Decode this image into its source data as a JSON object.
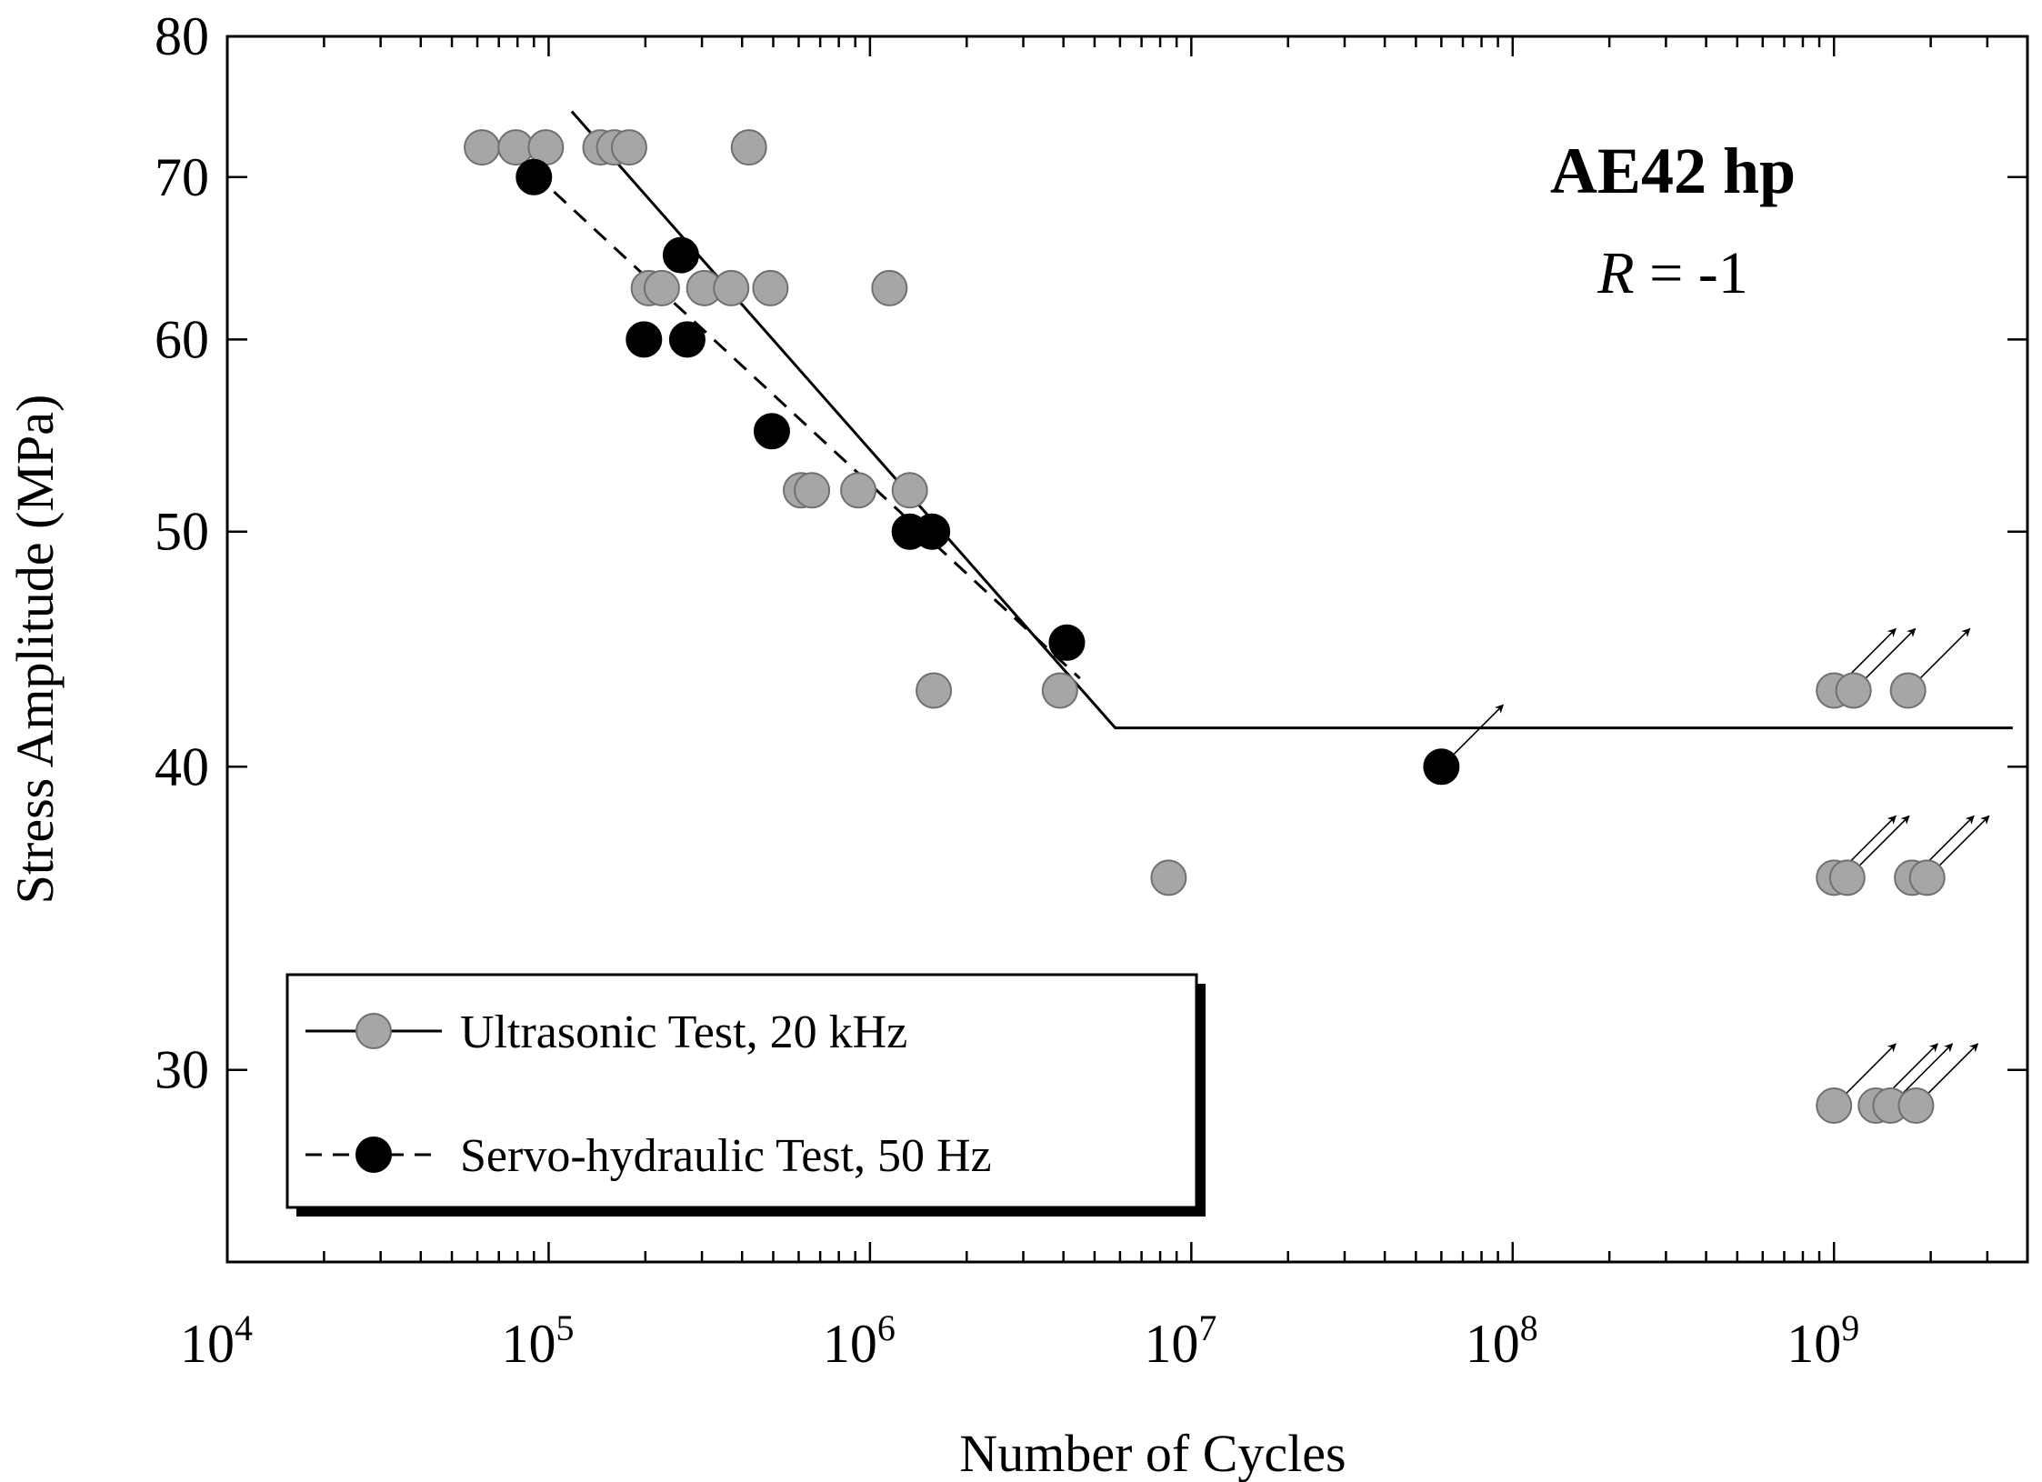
{
  "chart_data": {
    "type": "scatter",
    "title": "AE42 hp",
    "subtitle": {
      "italic": "R",
      "rest": " = -1"
    },
    "xlabel": "Number of Cycles",
    "ylabel": "Stress Amplitude (MPa)",
    "xscale": "log",
    "yscale": "log",
    "xlim": [
      10000,
      4000000000
    ],
    "ylim": [
      25,
      80
    ],
    "x_ticks": [
      {
        "value": 10000,
        "base": "10",
        "exp": "4"
      },
      {
        "value": 100000,
        "base": "10",
        "exp": "5"
      },
      {
        "value": 1000000,
        "base": "10",
        "exp": "6"
      },
      {
        "value": 10000000,
        "base": "10",
        "exp": "7"
      },
      {
        "value": 100000000,
        "base": "10",
        "exp": "8"
      },
      {
        "value": 1000000000,
        "base": "10",
        "exp": "9"
      }
    ],
    "y_ticks": [
      {
        "value": 30,
        "label": "30"
      },
      {
        "value": 40,
        "label": "40"
      },
      {
        "value": 50,
        "label": "50"
      },
      {
        "value": 60,
        "label": "60"
      },
      {
        "value": 70,
        "label": "70"
      },
      {
        "value": 80,
        "label": "80"
      }
    ],
    "legend_position": "bottom-left",
    "series": [
      {
        "name": "Ultrasonic Test, 20 kHz",
        "marker_color": "#a6a6a6",
        "line_style": "solid",
        "points": [
          {
            "x": 62000,
            "y": 72
          },
          {
            "x": 79000,
            "y": 72
          },
          {
            "x": 98000,
            "y": 72
          },
          {
            "x": 145000,
            "y": 72
          },
          {
            "x": 160000,
            "y": 72
          },
          {
            "x": 178000,
            "y": 72
          },
          {
            "x": 420000,
            "y": 72
          },
          {
            "x": 205000,
            "y": 63
          },
          {
            "x": 225000,
            "y": 63
          },
          {
            "x": 305000,
            "y": 63
          },
          {
            "x": 370000,
            "y": 63
          },
          {
            "x": 490000,
            "y": 63
          },
          {
            "x": 1150000,
            "y": 63
          },
          {
            "x": 610000,
            "y": 52
          },
          {
            "x": 660000,
            "y": 52
          },
          {
            "x": 920000,
            "y": 52
          },
          {
            "x": 1330000,
            "y": 52
          },
          {
            "x": 1580000,
            "y": 43
          },
          {
            "x": 3900000,
            "y": 43
          },
          {
            "x": 8500000,
            "y": 36
          },
          {
            "x": 1000000000,
            "y": 43,
            "runout": true
          },
          {
            "x": 1150000000,
            "y": 43,
            "runout": true
          },
          {
            "x": 1700000000,
            "y": 43,
            "runout": true
          },
          {
            "x": 1000000000,
            "y": 36,
            "runout": true
          },
          {
            "x": 1100000000,
            "y": 36,
            "runout": true
          },
          {
            "x": 1750000000,
            "y": 36,
            "runout": true
          },
          {
            "x": 1950000000,
            "y": 36,
            "runout": true
          },
          {
            "x": 1000000000,
            "y": 29,
            "runout": true
          },
          {
            "x": 1350000000,
            "y": 29,
            "runout": true
          },
          {
            "x": 1500000000,
            "y": 29,
            "runout": true
          },
          {
            "x": 1800000000,
            "y": 29,
            "runout": true
          }
        ],
        "fit_line": [
          {
            "x": 118000,
            "y": 74.5
          },
          {
            "x": 5800000,
            "y": 41.5
          },
          {
            "x": 3600000000,
            "y": 41.5
          }
        ]
      },
      {
        "name": "Servo-hydraulic Test, 50 Hz",
        "marker_color": "#000000",
        "line_style": "dashed",
        "points": [
          {
            "x": 90000,
            "y": 70
          },
          {
            "x": 258000,
            "y": 65
          },
          {
            "x": 198000,
            "y": 60
          },
          {
            "x": 270000,
            "y": 60
          },
          {
            "x": 495000,
            "y": 55
          },
          {
            "x": 1330000,
            "y": 50
          },
          {
            "x": 1560000,
            "y": 50
          },
          {
            "x": 4100000,
            "y": 45
          },
          {
            "x": 60000000,
            "y": 40,
            "runout": true
          }
        ],
        "fit_line": [
          {
            "x": 78000,
            "y": 71.5
          },
          {
            "x": 4500000,
            "y": 43.5
          }
        ]
      }
    ]
  }
}
